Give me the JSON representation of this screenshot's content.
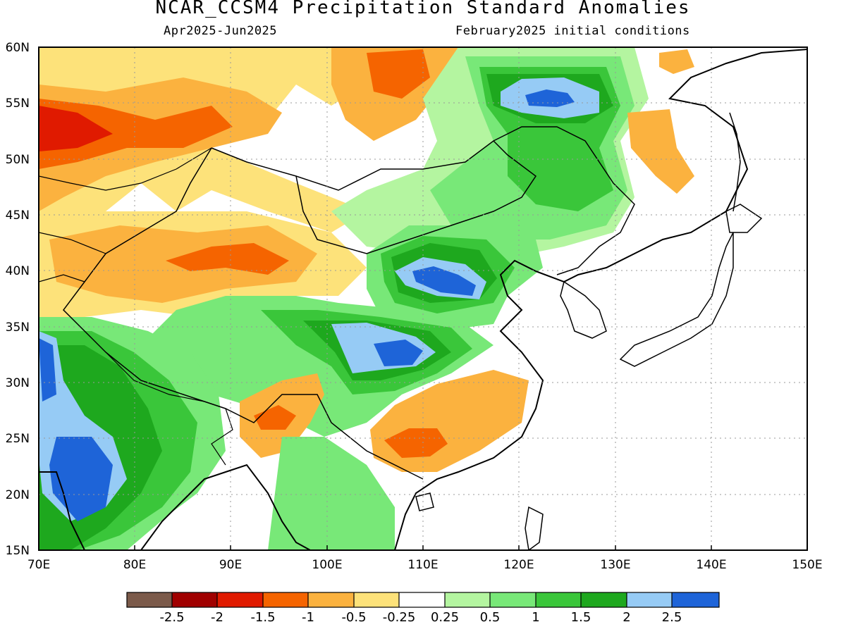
{
  "header": {
    "title": "NCAR_CCSM4 Precipitation Standard Anomalies",
    "period": "Apr2025-Jun2025",
    "init": "February2025 initial conditions"
  },
  "map": {
    "lon_range": [
      70,
      150
    ],
    "lat_range": [
      15,
      60
    ],
    "lon_ticks": [
      "70E",
      "80E",
      "90E",
      "100E",
      "110E",
      "120E",
      "130E",
      "140E",
      "150E"
    ],
    "lat_ticks": [
      "60N",
      "55N",
      "50N",
      "45N",
      "40N",
      "35N",
      "30N",
      "25N",
      "20N",
      "15N"
    ],
    "grid": "dotted"
  },
  "colorbar": {
    "colors": [
      "#7b5a4a",
      "#a00000",
      "#e01a00",
      "#f56400",
      "#fbb23f",
      "#fde27a",
      "#ffffff",
      "#b4f5a0",
      "#78e878",
      "#3ac63a",
      "#1ea81e",
      "#96cbf5",
      "#1e64d8"
    ],
    "labels": [
      "-2.5",
      "-2",
      "-1.5",
      "-1",
      "-0.5",
      "-0.25",
      "0.25",
      "0.5",
      "1",
      "1.5",
      "2",
      "2.5"
    ]
  },
  "anomaly_regions": [
    {
      "name": "west-siberia-dry",
      "color": "#fde27a"
    },
    {
      "name": "kazakh-north-dry",
      "color": "#fbb23f"
    },
    {
      "name": "kazakh-north-core",
      "color": "#f56400"
    },
    {
      "name": "kazakh-north-peak",
      "color": "#e01a00"
    },
    {
      "name": "siberia-dry",
      "color": "#fbb23f"
    },
    {
      "name": "siberia-core",
      "color": "#f56400"
    },
    {
      "name": "tarim-dry",
      "color": "#fde27a"
    },
    {
      "name": "tarim-core",
      "color": "#fbb23f"
    },
    {
      "name": "tarim-peak",
      "color": "#f56400"
    },
    {
      "name": "mongolia-wet",
      "color": "#b4f5a0"
    },
    {
      "name": "manchuria-wet",
      "color": "#78e878"
    },
    {
      "name": "manchuria-core",
      "color": "#3ac63a"
    },
    {
      "name": "manchuria-peak",
      "color": "#1ea81e"
    },
    {
      "name": "amur-blue",
      "color": "#96cbf5"
    },
    {
      "name": "amur-blue-core",
      "color": "#1e64d8"
    },
    {
      "name": "north-china-wet",
      "color": "#78e878"
    },
    {
      "name": "north-china-core",
      "color": "#3ac63a"
    },
    {
      "name": "north-china-peak",
      "color": "#1ea81e"
    },
    {
      "name": "ordos-blue",
      "color": "#96cbf5"
    },
    {
      "name": "ordos-blue-core",
      "color": "#1e64d8"
    },
    {
      "name": "tibet-wet",
      "color": "#78e878"
    },
    {
      "name": "sichuan-core",
      "color": "#3ac63a"
    },
    {
      "name": "sichuan-peak",
      "color": "#1ea81e"
    },
    {
      "name": "sichuan-blue",
      "color": "#96cbf5"
    },
    {
      "name": "sichuan-blue-core",
      "color": "#1e64d8"
    },
    {
      "name": "south-china-dry",
      "color": "#fbb23f"
    },
    {
      "name": "south-china-core",
      "color": "#f56400"
    },
    {
      "name": "yunnan-dry",
      "color": "#fbb23f"
    },
    {
      "name": "yunnan-core",
      "color": "#f56400"
    },
    {
      "name": "india-wet",
      "color": "#78e878"
    },
    {
      "name": "india-core",
      "color": "#3ac63a"
    },
    {
      "name": "india-peak",
      "color": "#1ea81e"
    },
    {
      "name": "india-blue",
      "color": "#96cbf5"
    },
    {
      "name": "india-blue-core",
      "color": "#1e64d8"
    },
    {
      "name": "indochina-wet",
      "color": "#78e878"
    },
    {
      "name": "sakhalin-dry",
      "color": "#fbb23f"
    },
    {
      "name": "okhotsk-dry",
      "color": "#fbb23f"
    }
  ]
}
